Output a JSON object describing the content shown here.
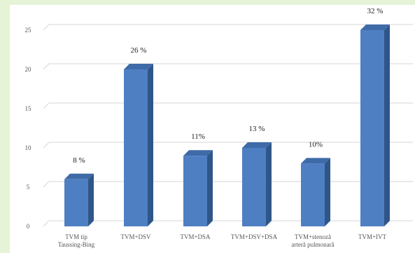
{
  "chart_data": {
    "type": "bar",
    "categories": [
      [
        "TVM tip",
        "Taussing-Bing"
      ],
      [
        "TVM+DSV"
      ],
      [
        "TVM+DSA"
      ],
      [
        "TVM+DSV+DSA"
      ],
      [
        "TVM+stenoză",
        "arteră pulmonară"
      ],
      [
        "TVM+IVT"
      ]
    ],
    "values": [
      6,
      20,
      9,
      10,
      8,
      25
    ],
    "data_labels": [
      "8 %",
      "26 %",
      "11%",
      "13 %",
      "10%",
      "32 %"
    ],
    "y_ticks": [
      0,
      5,
      10,
      15,
      20,
      25
    ],
    "ylim": [
      0,
      27
    ],
    "title": "",
    "xlabel": "",
    "ylabel": "",
    "grid": true,
    "colors": {
      "bar_front": "#4f7fc3",
      "bar_side": "#2f5688",
      "bar_top": "#3e6aa8",
      "grid": "#d6d6d6",
      "panel": "#ffffff",
      "frame": "#e6f3d6"
    }
  }
}
